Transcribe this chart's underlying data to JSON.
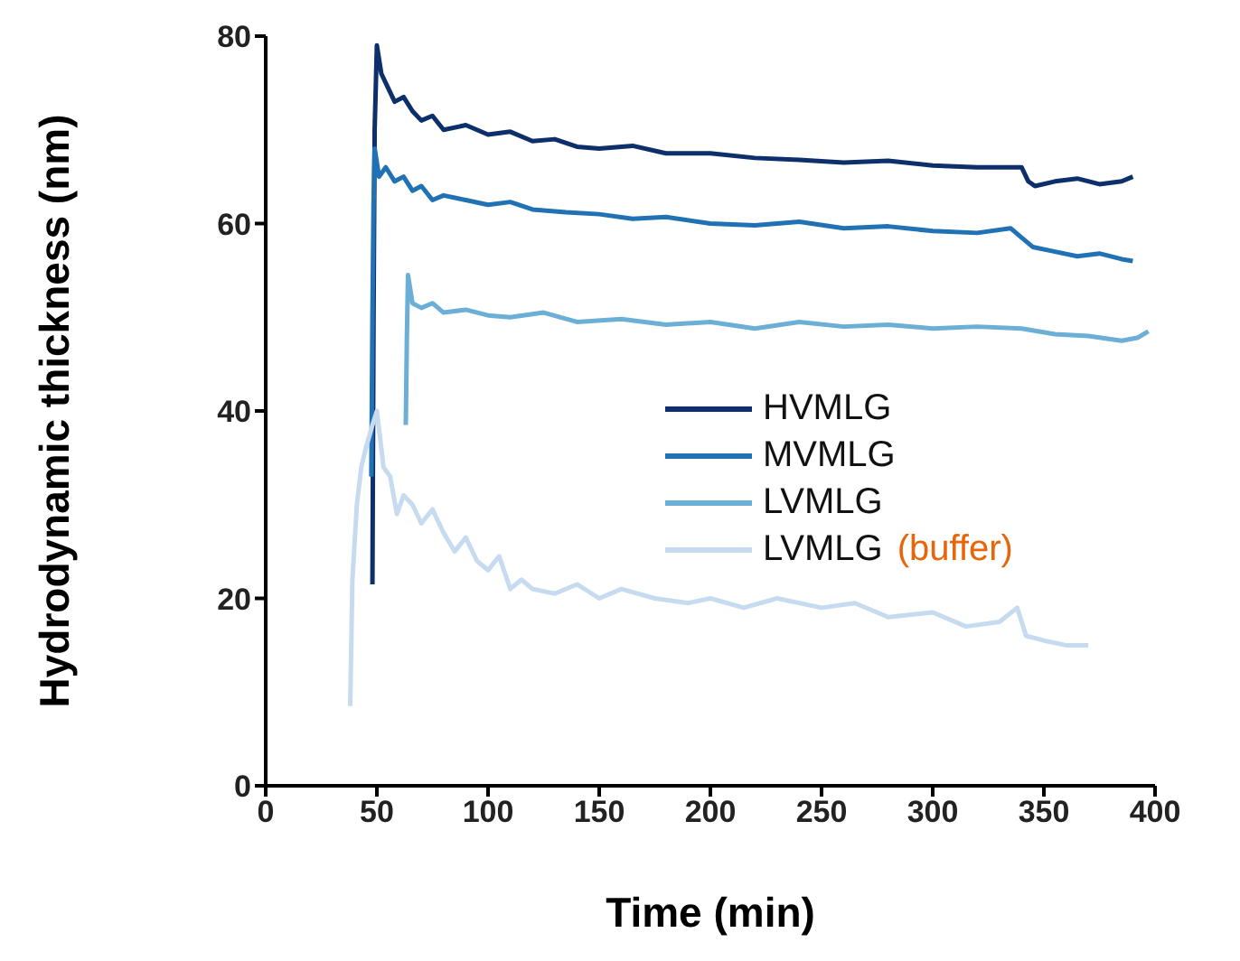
{
  "chart_data": {
    "type": "line",
    "xlabel": "Time (min)",
    "ylabel": "Hydrodynamic thickness (nm)",
    "xlim": [
      0,
      400
    ],
    "xticks": [
      0,
      50,
      100,
      150,
      200,
      250,
      300,
      350,
      400
    ],
    "ylim": [
      0,
      80
    ],
    "yticks": [
      0,
      20,
      40,
      60,
      80
    ],
    "grid": false,
    "legend": "right",
    "marker": "none",
    "line_style": "solid",
    "annotations": [
      "(buffer)"
    ],
    "series": [
      {
        "name": "HVMLG",
        "color": "#0d2f6b",
        "x": [
          48,
          48.5,
          49,
          50,
          52,
          55,
          58,
          62,
          66,
          70,
          75,
          80,
          90,
          100,
          110,
          120,
          130,
          140,
          150,
          165,
          180,
          200,
          220,
          240,
          260,
          280,
          300,
          320,
          340,
          343,
          346,
          355,
          365,
          375,
          385,
          390
        ],
        "values": [
          21.5,
          50,
          70,
          79,
          76,
          74.5,
          73,
          73.5,
          72,
          71,
          71.5,
          70,
          70.5,
          69.5,
          69.8,
          68.8,
          69,
          68.2,
          68,
          68.3,
          67.5,
          67.5,
          67,
          66.8,
          66.5,
          66.7,
          66.2,
          66,
          66,
          64.5,
          64,
          64.5,
          64.8,
          64.2,
          64.5,
          65
        ]
      },
      {
        "name": "MVMLG",
        "color": "#2171b5",
        "x": [
          47.5,
          48,
          48.5,
          49,
          51,
          54,
          58,
          62,
          66,
          70,
          75,
          80,
          90,
          100,
          110,
          120,
          135,
          150,
          165,
          180,
          200,
          220,
          240,
          260,
          280,
          300,
          320,
          335,
          340,
          345,
          355,
          365,
          375,
          385,
          390
        ],
        "values": [
          33,
          50,
          62,
          68,
          65,
          66,
          64.5,
          65,
          63.5,
          64,
          62.5,
          63,
          62.5,
          62,
          62.3,
          61.5,
          61.2,
          61,
          60.5,
          60.7,
          60,
          59.8,
          60.2,
          59.5,
          59.7,
          59.2,
          59,
          59.5,
          58.5,
          57.5,
          57,
          56.5,
          56.8,
          56.2,
          56
        ]
      },
      {
        "name": "LVMLG",
        "color": "#6baed6",
        "x": [
          63,
          63.5,
          64,
          66,
          70,
          75,
          80,
          90,
          100,
          110,
          125,
          140,
          160,
          180,
          200,
          220,
          240,
          260,
          280,
          300,
          320,
          340,
          355,
          370,
          385,
          392,
          397
        ],
        "values": [
          38.5,
          48,
          54.5,
          51.5,
          51,
          51.5,
          50.5,
          50.8,
          50.2,
          50,
          50.5,
          49.5,
          49.8,
          49.2,
          49.5,
          48.8,
          49.5,
          49,
          49.2,
          48.8,
          49,
          48.8,
          48.2,
          48,
          47.5,
          47.8,
          48.5
        ]
      },
      {
        "name": "LVMLG",
        "color": "#c6dbef",
        "x": [
          38,
          39,
          41,
          43,
          45,
          48,
          50,
          53,
          56,
          59,
          62,
          66,
          70,
          75,
          80,
          85,
          90,
          95,
          100,
          105,
          110,
          115,
          120,
          130,
          140,
          150,
          160,
          175,
          190,
          200,
          215,
          230,
          250,
          265,
          280,
          300,
          315,
          330,
          338,
          342,
          350,
          360,
          370
        ],
        "values": [
          8.5,
          22,
          30,
          34,
          36,
          38.5,
          40,
          34,
          33,
          29,
          31,
          30,
          28,
          29.5,
          27,
          25,
          26.5,
          24,
          23,
          24.5,
          21,
          22,
          21,
          20.5,
          21.5,
          20,
          21,
          20,
          19.5,
          20,
          19,
          20,
          19,
          19.5,
          18,
          18.5,
          17,
          17.5,
          19,
          16,
          15.5,
          15,
          15
        ]
      }
    ]
  }
}
